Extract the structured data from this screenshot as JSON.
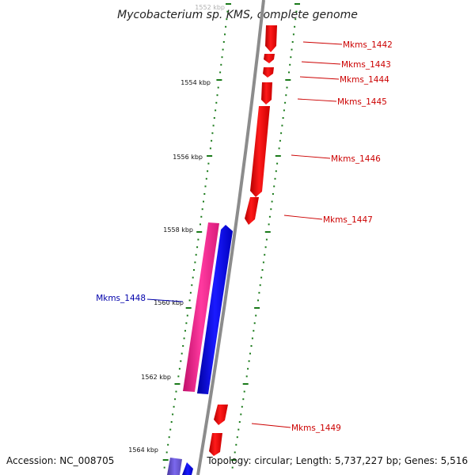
{
  "title": "Mycobacterium sp. KMS, complete genome",
  "scale": {
    "ticks": [
      {
        "label": "1552 kbp"
      },
      {
        "label": "1554 kbp"
      },
      {
        "label": "1556 kbp"
      },
      {
        "label": "1558 kbp"
      },
      {
        "label": "1560 kbp"
      },
      {
        "label": "1562 kbp"
      },
      {
        "label": "1564 kbp"
      }
    ]
  },
  "genes": {
    "right_strand_labels": [
      "Mkms_1442",
      "Mkms_1443",
      "Mkms_1444",
      "Mkms_1445",
      "Mkms_1446",
      "Mkms_1447",
      "Mkms_1449"
    ],
    "left_strand_labels": [
      "Mkms_1448"
    ],
    "colors": {
      "forward_gene": "#ff0000",
      "reverse_gene": "#0000ff",
      "pink_feature": "#ff3399",
      "purple_feature": "#6a5acd",
      "right_label": "#cc0000",
      "left_label": "#0000aa",
      "tick": "#1a7a1a",
      "backbone": "#8c8c8c"
    }
  },
  "footer": {
    "accession": "Accession: NC_008705",
    "summary": "Topology: circular; Length: 5,737,227 bp; Genes: 5,516"
  }
}
